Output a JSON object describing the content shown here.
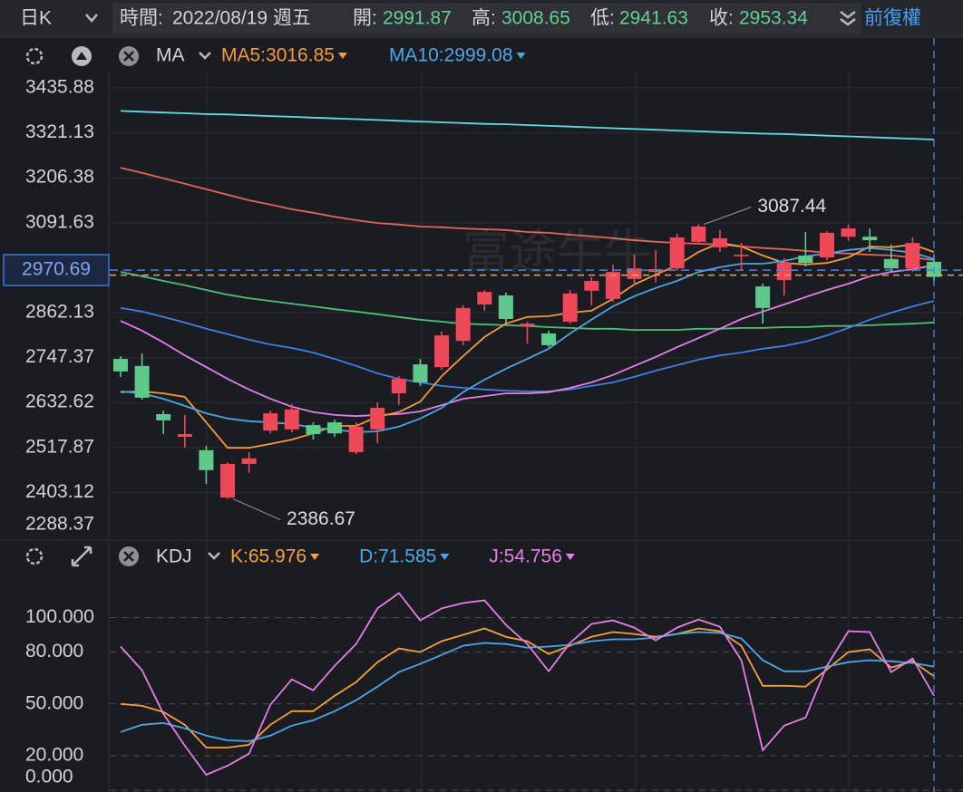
{
  "toolbar": {
    "period": "日K",
    "time_label": "時間:",
    "date": "2022/08/19 週五",
    "open_label": "開:",
    "open": 2991.87,
    "high_label": "高:",
    "high": 3008.65,
    "low_label": "低:",
    "low": 2941.63,
    "close_label": "收:",
    "close": 2953.34,
    "adjust": "前復權"
  },
  "chart_data": [
    {
      "type": "candlestick",
      "indicator": "MA",
      "watermark": "富途牛牛",
      "ylim": [
        2288.37,
        3475.2
      ],
      "yticks": [
        2288.37,
        2403.12,
        2517.87,
        2632.62,
        2747.37,
        2862.13,
        3091.63,
        3206.38,
        3321.13,
        3435.88
      ],
      "grid": true,
      "up_color": "#ef4859",
      "down_color": "#5fc98c",
      "open": [
        2744,
        2726,
        2603,
        2545,
        2511,
        2390,
        2476,
        2561,
        2564,
        2575,
        2582,
        2506,
        2564,
        2656,
        2730,
        2723,
        2790,
        2883,
        2906,
        2827,
        2809,
        2839,
        2918,
        2897,
        2948,
        2966,
        2975,
        3043,
        3029,
        3006,
        2929,
        2945,
        3008,
        3003,
        3056,
        3056,
        2999,
        2975,
        2991.87
      ],
      "high": [
        2751,
        2758,
        2612,
        2601,
        2522,
        2480,
        2506,
        2612,
        2629,
        2582,
        2589,
        2582,
        2633,
        2700,
        2744,
        2814,
        2881,
        2920,
        2913,
        2839,
        2816,
        2920,
        2952,
        2985,
        3010,
        3022,
        3063,
        3087.44,
        3073,
        3040,
        2936,
        3001,
        3068,
        3070,
        3087,
        3077,
        3036,
        3054,
        3008.65
      ],
      "low": [
        2698,
        2640,
        2552,
        2517,
        2425,
        2386.67,
        2453,
        2554,
        2557,
        2538,
        2545,
        2501,
        2529,
        2626,
        2675,
        2716,
        2779,
        2867,
        2834,
        2783,
        2774,
        2834,
        2881,
        2890,
        2932,
        2939,
        2969,
        3036,
        3017,
        2973,
        2834,
        2906,
        2980,
        2996,
        3045,
        3017,
        2966,
        2966,
        2941.63
      ],
      "close": [
        2712,
        2645,
        2587,
        2552,
        2460,
        2476,
        2490,
        2605,
        2615,
        2552,
        2554,
        2571,
        2619,
        2693,
        2684,
        2804,
        2874,
        2915,
        2846,
        2834,
        2779,
        2911,
        2943,
        2966,
        2975,
        2973,
        3054,
        3082,
        3052,
        3010,
        2874,
        2989,
        2989,
        3066,
        3077,
        3047,
        2975,
        3040,
        2953.34
      ],
      "series": [
        {
          "color": "#5fdde6",
          "values": [
            3377,
            3375,
            3373,
            3371,
            3369,
            3368,
            3366,
            3364,
            3362,
            3360,
            3358,
            3356,
            3354,
            3352,
            3350,
            3348,
            3346,
            3344,
            3343,
            3341,
            3339,
            3337,
            3335,
            3333,
            3331,
            3329,
            3327,
            3325,
            3323,
            3321,
            3319,
            3318,
            3316,
            3314,
            3312,
            3310,
            3308,
            3306,
            3304
          ]
        },
        {
          "color": "#e2655c",
          "values": [
            3232,
            3219,
            3205,
            3191,
            3177,
            3163,
            3149,
            3138,
            3126,
            3117,
            3107,
            3098,
            3091,
            3087,
            3082,
            3080,
            3077,
            3075,
            3073,
            3068,
            3066,
            3061,
            3057,
            3052,
            3047,
            3043,
            3040,
            3038,
            3036,
            3031,
            3027,
            3024,
            3020,
            3015,
            3013,
            3010,
            3008,
            3003,
            2996
          ]
        },
        {
          "color": "#4cc07a",
          "values": [
            2966,
            2955,
            2943,
            2932,
            2920,
            2908,
            2899,
            2892,
            2885,
            2878,
            2871,
            2865,
            2858,
            2851,
            2844,
            2839,
            2834,
            2832,
            2830,
            2828,
            2825,
            2823,
            2821,
            2821,
            2818,
            2818,
            2818,
            2821,
            2821,
            2823,
            2823,
            2825,
            2825,
            2828,
            2828,
            2830,
            2832,
            2834,
            2837
          ]
        },
        {
          "color": "#3f7fe4",
          "values": [
            2874,
            2865,
            2851,
            2837,
            2821,
            2807,
            2793,
            2781,
            2772,
            2760,
            2744,
            2726,
            2707,
            2693,
            2684,
            2675,
            2670,
            2666,
            2663,
            2661,
            2661,
            2666,
            2675,
            2684,
            2698,
            2714,
            2728,
            2742,
            2753,
            2760,
            2770,
            2777,
            2788,
            2804,
            2823,
            2844,
            2862,
            2878,
            2892
          ]
        },
        {
          "color": "#e27fe8",
          "values": [
            2841,
            2816,
            2786,
            2753,
            2723,
            2693,
            2666,
            2642,
            2622,
            2608,
            2601,
            2598,
            2601,
            2603,
            2610,
            2626,
            2642,
            2649,
            2656,
            2656,
            2659,
            2670,
            2684,
            2703,
            2726,
            2749,
            2774,
            2797,
            2821,
            2846,
            2865,
            2883,
            2902,
            2920,
            2936,
            2955,
            2966,
            2973,
            2983
          ]
        },
        {
          "name": "MA5:3016.85",
          "color": "#f39a3a",
          "values": [
            2659,
            2661,
            2656,
            2647,
            2582,
            2517,
            2517,
            2527,
            2538,
            2554,
            2573,
            2573,
            2596,
            2608,
            2635,
            2700,
            2751,
            2800,
            2834,
            2851,
            2853,
            2862,
            2867,
            2897,
            2934,
            2959,
            2983,
            3017,
            3040,
            3031,
            3008,
            2989,
            2985,
            2989,
            3003,
            3031,
            3029,
            3036,
            3016.85
          ]
        },
        {
          "name": "MA10:2999.08",
          "color": "#4aa6e6",
          "values": [
            2661,
            2656,
            2642,
            2624,
            2605,
            2592,
            2585,
            2582,
            2578,
            2568,
            2564,
            2557,
            2559,
            2571,
            2592,
            2619,
            2659,
            2691,
            2719,
            2744,
            2770,
            2809,
            2844,
            2878,
            2904,
            2925,
            2943,
            2966,
            2978,
            2987,
            2987,
            2994,
            3006,
            3013,
            3022,
            3027,
            3022,
            3015,
            2999.08
          ]
        }
      ],
      "marker": 2970.69,
      "annotations": [
        3087.44,
        2386.67
      ]
    },
    {
      "type": "line",
      "indicator": "KDJ",
      "ylim": [
        0,
        126
      ],
      "yticks": [
        {
          "value": 0,
          "label": "0.000"
        },
        {
          "value": 20,
          "label": "20.000"
        },
        {
          "value": 50,
          "label": "50.000"
        },
        {
          "value": 80,
          "label": "80.000"
        },
        {
          "value": 100,
          "label": "100.000"
        }
      ],
      "grid": true,
      "series": [
        {
          "name": "K:65.976",
          "color": "#f5a13a",
          "values": [
            50.0,
            48.9,
            45.3,
            37.9,
            24.7,
            24.7,
            26.3,
            37.9,
            45.8,
            45.8,
            54.7,
            62.6,
            74.2,
            82.1,
            80.0,
            86.3,
            90.0,
            93.7,
            88.9,
            86.3,
            78.9,
            83.7,
            88.9,
            91.6,
            90.5,
            88.9,
            90.5,
            93.7,
            92.1,
            83.7,
            60.5,
            60.5,
            60.0,
            70.0,
            80.0,
            81.6,
            71.1,
            74.7,
            65.976
          ]
        },
        {
          "name": "D:71.585",
          "color": "#4aa8e8",
          "values": [
            33.7,
            37.9,
            38.9,
            35.8,
            31.6,
            28.9,
            28.4,
            31.6,
            37.4,
            40.5,
            45.8,
            52.1,
            60.0,
            68.4,
            73.2,
            78.4,
            83.7,
            85.3,
            84.7,
            82.6,
            83.2,
            84.2,
            86.3,
            87.4,
            87.4,
            88.4,
            90.5,
            91.6,
            91.1,
            87.9,
            75.3,
            68.9,
            68.9,
            71.6,
            74.2,
            75.3,
            74.7,
            73.7,
            71.585
          ]
        },
        {
          "name": "J:54.756",
          "color": "#e47ee8",
          "values": [
            83.2,
            69.5,
            44.2,
            25.8,
            8.9,
            14.2,
            21.1,
            49.5,
            64.2,
            57.9,
            72.1,
            84.7,
            105.3,
            114.2,
            98.4,
            105.3,
            108.4,
            110.0,
            95.8,
            84.7,
            68.9,
            85.3,
            96.3,
            98.4,
            94.2,
            86.8,
            94.2,
            98.9,
            94.7,
            75.3,
            23.2,
            37.4,
            42.1,
            72.1,
            92.1,
            91.6,
            68.4,
            76.3,
            54.756
          ]
        }
      ]
    }
  ]
}
